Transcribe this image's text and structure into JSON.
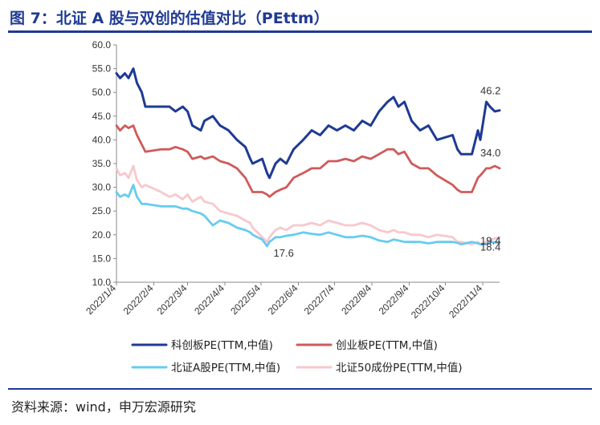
{
  "header": {
    "title": "图 7：北证 A 股与双创的估值对比（PEttm）"
  },
  "footer": {
    "source": "资料来源：wind，申万宏源研究"
  },
  "chart_data": {
    "type": "line",
    "title": "",
    "xlabel": "",
    "ylabel": "",
    "ylim": [
      10.0,
      60.0
    ],
    "yticks": [
      "10.0",
      "15.0",
      "20.0",
      "25.0",
      "30.0",
      "35.0",
      "40.0",
      "45.0",
      "50.0",
      "55.0",
      "60.0"
    ],
    "xticks": [
      "2022/1/4",
      "2022/2/4",
      "2022/3/4",
      "2022/4/4",
      "2022/5/4",
      "2022/6/4",
      "2022/7/4",
      "2022/8/4",
      "2022/9/4",
      "2022/10/4",
      "2022/11/4"
    ],
    "x_range": [
      "2022-01-04",
      "2022-11-18"
    ],
    "grid": false,
    "legend_position": "bottom",
    "series": [
      {
        "name": "科创板PE(TTM,中值)",
        "color": "#1f3a93",
        "end_label": "46.2",
        "points": [
          [
            "2022-01-04",
            54.0
          ],
          [
            "2022-01-07",
            53.0
          ],
          [
            "2022-01-11",
            54.0
          ],
          [
            "2022-01-14",
            53.0
          ],
          [
            "2022-01-18",
            55.0
          ],
          [
            "2022-01-21",
            52.0
          ],
          [
            "2022-01-25",
            50.0
          ],
          [
            "2022-01-28",
            47.0
          ],
          [
            "2022-02-10",
            47.0
          ],
          [
            "2022-02-17",
            47.0
          ],
          [
            "2022-02-22",
            46.0
          ],
          [
            "2022-02-28",
            47.0
          ],
          [
            "2022-03-04",
            46.0
          ],
          [
            "2022-03-08",
            43.0
          ],
          [
            "2022-03-15",
            42.0
          ],
          [
            "2022-03-18",
            44.0
          ],
          [
            "2022-03-25",
            45.0
          ],
          [
            "2022-03-31",
            43.0
          ],
          [
            "2022-04-07",
            42.0
          ],
          [
            "2022-04-14",
            40.0
          ],
          [
            "2022-04-21",
            38.5
          ],
          [
            "2022-04-25",
            36.0
          ],
          [
            "2022-04-27",
            35.0
          ],
          [
            "2022-05-05",
            36.0
          ],
          [
            "2022-05-09",
            33.0
          ],
          [
            "2022-05-11",
            32.0
          ],
          [
            "2022-05-16",
            35.0
          ],
          [
            "2022-05-20",
            36.0
          ],
          [
            "2022-05-25",
            35.0
          ],
          [
            "2022-05-31",
            38.0
          ],
          [
            "2022-06-08",
            40.0
          ],
          [
            "2022-06-15",
            42.0
          ],
          [
            "2022-06-22",
            41.0
          ],
          [
            "2022-06-29",
            43.0
          ],
          [
            "2022-07-06",
            42.0
          ],
          [
            "2022-07-13",
            43.0
          ],
          [
            "2022-07-20",
            42.0
          ],
          [
            "2022-07-27",
            44.0
          ],
          [
            "2022-08-03",
            43.0
          ],
          [
            "2022-08-10",
            46.0
          ],
          [
            "2022-08-17",
            48.0
          ],
          [
            "2022-08-22",
            49.0
          ],
          [
            "2022-08-26",
            47.0
          ],
          [
            "2022-08-31",
            48.0
          ],
          [
            "2022-09-06",
            44.0
          ],
          [
            "2022-09-13",
            42.0
          ],
          [
            "2022-09-20",
            43.0
          ],
          [
            "2022-09-27",
            40.0
          ],
          [
            "2022-10-10",
            41.0
          ],
          [
            "2022-10-14",
            38.0
          ],
          [
            "2022-10-17",
            37.0
          ],
          [
            "2022-10-26",
            37.0
          ],
          [
            "2022-10-31",
            42.0
          ],
          [
            "2022-11-02",
            40.0
          ],
          [
            "2022-11-07",
            48.0
          ],
          [
            "2022-11-10",
            47.0
          ],
          [
            "2022-11-14",
            46.0
          ],
          [
            "2022-11-18",
            46.2
          ]
        ]
      },
      {
        "name": "创业板PE(TTM,中值)",
        "color": "#d05a5a",
        "end_label": "34.0",
        "points": [
          [
            "2022-01-04",
            43.0
          ],
          [
            "2022-01-07",
            42.0
          ],
          [
            "2022-01-11",
            43.0
          ],
          [
            "2022-01-14",
            42.5
          ],
          [
            "2022-01-18",
            43.0
          ],
          [
            "2022-01-21",
            41.0
          ],
          [
            "2022-01-25",
            39.0
          ],
          [
            "2022-01-28",
            37.5
          ],
          [
            "2022-02-10",
            38.0
          ],
          [
            "2022-02-17",
            38.0
          ],
          [
            "2022-02-22",
            38.5
          ],
          [
            "2022-02-28",
            38.0
          ],
          [
            "2022-03-04",
            37.5
          ],
          [
            "2022-03-08",
            36.0
          ],
          [
            "2022-03-15",
            36.5
          ],
          [
            "2022-03-18",
            36.0
          ],
          [
            "2022-03-25",
            36.5
          ],
          [
            "2022-03-31",
            35.5
          ],
          [
            "2022-04-07",
            35.0
          ],
          [
            "2022-04-14",
            34.0
          ],
          [
            "2022-04-21",
            32.0
          ],
          [
            "2022-04-25",
            30.0
          ],
          [
            "2022-04-27",
            29.0
          ],
          [
            "2022-05-05",
            29.0
          ],
          [
            "2022-05-09",
            28.5
          ],
          [
            "2022-05-11",
            28.0
          ],
          [
            "2022-05-16",
            29.0
          ],
          [
            "2022-05-20",
            29.5
          ],
          [
            "2022-05-25",
            30.0
          ],
          [
            "2022-05-31",
            32.0
          ],
          [
            "2022-06-08",
            33.0
          ],
          [
            "2022-06-15",
            34.0
          ],
          [
            "2022-06-22",
            34.0
          ],
          [
            "2022-06-29",
            35.5
          ],
          [
            "2022-07-06",
            35.5
          ],
          [
            "2022-07-13",
            36.0
          ],
          [
            "2022-07-20",
            35.5
          ],
          [
            "2022-07-27",
            36.5
          ],
          [
            "2022-08-03",
            36.0
          ],
          [
            "2022-08-10",
            37.0
          ],
          [
            "2022-08-17",
            38.0
          ],
          [
            "2022-08-22",
            38.0
          ],
          [
            "2022-08-26",
            37.0
          ],
          [
            "2022-08-31",
            37.5
          ],
          [
            "2022-09-06",
            35.0
          ],
          [
            "2022-09-13",
            34.0
          ],
          [
            "2022-09-20",
            34.0
          ],
          [
            "2022-09-27",
            32.5
          ],
          [
            "2022-10-10",
            30.5
          ],
          [
            "2022-10-14",
            29.5
          ],
          [
            "2022-10-17",
            29.0
          ],
          [
            "2022-10-26",
            29.0
          ],
          [
            "2022-10-31",
            32.0
          ],
          [
            "2022-11-02",
            32.5
          ],
          [
            "2022-11-07",
            34.0
          ],
          [
            "2022-11-10",
            34.0
          ],
          [
            "2022-11-14",
            34.5
          ],
          [
            "2022-11-18",
            34.0
          ]
        ]
      },
      {
        "name": "北证A股PE(TTM,中值)",
        "color": "#66ccf0",
        "start_label": "17.6",
        "end_label": "18.4",
        "points": [
          [
            "2022-01-04",
            29.0
          ],
          [
            "2022-01-07",
            28.0
          ],
          [
            "2022-01-11",
            28.5
          ],
          [
            "2022-01-14",
            28.0
          ],
          [
            "2022-01-18",
            30.5
          ],
          [
            "2022-01-21",
            28.0
          ],
          [
            "2022-01-25",
            26.5
          ],
          [
            "2022-01-28",
            26.5
          ],
          [
            "2022-02-10",
            26.0
          ],
          [
            "2022-02-17",
            26.0
          ],
          [
            "2022-02-22",
            26.0
          ],
          [
            "2022-02-28",
            25.5
          ],
          [
            "2022-03-04",
            25.5
          ],
          [
            "2022-03-08",
            25.0
          ],
          [
            "2022-03-15",
            24.5
          ],
          [
            "2022-03-18",
            24.0
          ],
          [
            "2022-03-25",
            22.0
          ],
          [
            "2022-03-31",
            23.0
          ],
          [
            "2022-04-07",
            22.5
          ],
          [
            "2022-04-14",
            21.5
          ],
          [
            "2022-04-21",
            21.0
          ],
          [
            "2022-04-25",
            20.5
          ],
          [
            "2022-04-27",
            20.0
          ],
          [
            "2022-05-05",
            19.0
          ],
          [
            "2022-05-09",
            17.6
          ],
          [
            "2022-05-11",
            18.5
          ],
          [
            "2022-05-16",
            19.5
          ],
          [
            "2022-05-20",
            19.5
          ],
          [
            "2022-05-25",
            19.8
          ],
          [
            "2022-05-31",
            20.0
          ],
          [
            "2022-06-08",
            20.5
          ],
          [
            "2022-06-15",
            20.2
          ],
          [
            "2022-06-22",
            20.0
          ],
          [
            "2022-06-29",
            20.5
          ],
          [
            "2022-07-06",
            20.0
          ],
          [
            "2022-07-13",
            19.5
          ],
          [
            "2022-07-20",
            19.5
          ],
          [
            "2022-07-27",
            19.8
          ],
          [
            "2022-08-03",
            19.5
          ],
          [
            "2022-08-10",
            18.8
          ],
          [
            "2022-08-17",
            18.5
          ],
          [
            "2022-08-22",
            19.0
          ],
          [
            "2022-08-26",
            18.8
          ],
          [
            "2022-08-31",
            18.5
          ],
          [
            "2022-09-06",
            18.5
          ],
          [
            "2022-09-13",
            18.5
          ],
          [
            "2022-09-20",
            18.2
          ],
          [
            "2022-09-27",
            18.5
          ],
          [
            "2022-10-10",
            18.5
          ],
          [
            "2022-10-14",
            18.3
          ],
          [
            "2022-10-17",
            18.0
          ],
          [
            "2022-10-26",
            18.5
          ],
          [
            "2022-10-31",
            18.2
          ],
          [
            "2022-11-02",
            18.0
          ],
          [
            "2022-11-07",
            18.0
          ],
          [
            "2022-11-10",
            18.5
          ],
          [
            "2022-11-14",
            18.4
          ],
          [
            "2022-11-18",
            18.4
          ]
        ]
      },
      {
        "name": "北证50成份PE(TTM,中值)",
        "color": "#f8c8cc",
        "end_label": "19.4",
        "points": [
          [
            "2022-01-04",
            34.0
          ],
          [
            "2022-01-07",
            32.5
          ],
          [
            "2022-01-11",
            33.0
          ],
          [
            "2022-01-14",
            32.0
          ],
          [
            "2022-01-18",
            34.5
          ],
          [
            "2022-01-21",
            31.5
          ],
          [
            "2022-01-25",
            30.0
          ],
          [
            "2022-01-28",
            30.5
          ],
          [
            "2022-02-10",
            29.0
          ],
          [
            "2022-02-17",
            28.0
          ],
          [
            "2022-02-22",
            28.5
          ],
          [
            "2022-02-28",
            27.5
          ],
          [
            "2022-03-04",
            28.5
          ],
          [
            "2022-03-08",
            27.0
          ],
          [
            "2022-03-15",
            28.0
          ],
          [
            "2022-03-18",
            27.0
          ],
          [
            "2022-03-25",
            26.5
          ],
          [
            "2022-03-31",
            25.0
          ],
          [
            "2022-04-07",
            24.5
          ],
          [
            "2022-04-14",
            24.0
          ],
          [
            "2022-04-21",
            23.0
          ],
          [
            "2022-04-25",
            22.5
          ],
          [
            "2022-04-27",
            21.5
          ],
          [
            "2022-05-05",
            19.5
          ],
          [
            "2022-05-09",
            18.5
          ],
          [
            "2022-05-11",
            19.5
          ],
          [
            "2022-05-16",
            21.0
          ],
          [
            "2022-05-20",
            21.5
          ],
          [
            "2022-05-25",
            21.0
          ],
          [
            "2022-05-31",
            22.0
          ],
          [
            "2022-06-08",
            22.0
          ],
          [
            "2022-06-15",
            22.5
          ],
          [
            "2022-06-22",
            22.0
          ],
          [
            "2022-06-29",
            23.0
          ],
          [
            "2022-07-06",
            22.5
          ],
          [
            "2022-07-13",
            22.0
          ],
          [
            "2022-07-20",
            22.0
          ],
          [
            "2022-07-27",
            22.5
          ],
          [
            "2022-08-03",
            22.0
          ],
          [
            "2022-08-10",
            21.0
          ],
          [
            "2022-08-17",
            20.5
          ],
          [
            "2022-08-22",
            21.0
          ],
          [
            "2022-08-26",
            20.5
          ],
          [
            "2022-08-31",
            20.5
          ],
          [
            "2022-09-06",
            20.0
          ],
          [
            "2022-09-13",
            20.0
          ],
          [
            "2022-09-20",
            19.5
          ],
          [
            "2022-09-27",
            20.0
          ],
          [
            "2022-10-10",
            19.5
          ],
          [
            "2022-10-14",
            18.5
          ],
          [
            "2022-10-17",
            18.5
          ],
          [
            "2022-10-26",
            18.0
          ],
          [
            "2022-10-31",
            18.5
          ],
          [
            "2022-11-02",
            18.0
          ],
          [
            "2022-11-07",
            18.5
          ],
          [
            "2022-11-10",
            19.0
          ],
          [
            "2022-11-14",
            19.2
          ],
          [
            "2022-11-18",
            19.4
          ]
        ]
      }
    ]
  }
}
